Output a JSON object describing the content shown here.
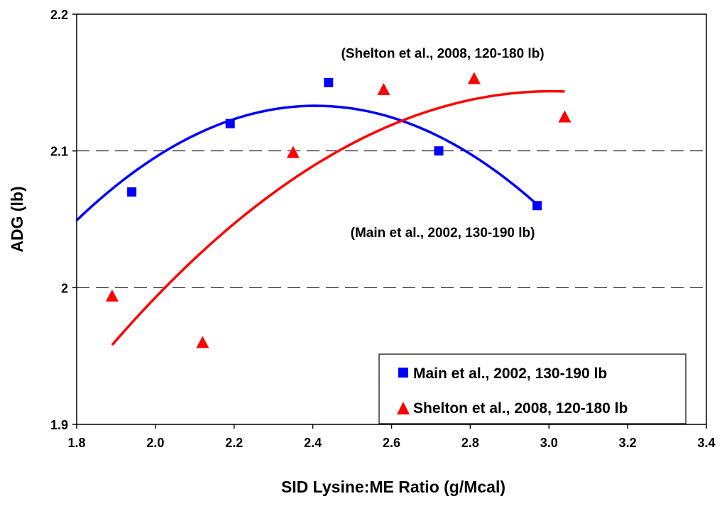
{
  "chart_data": {
    "type": "scatter",
    "title": "",
    "xlabel": "SID Lysine:ME Ratio (g/Mcal)",
    "ylabel": "ADG (lb)",
    "xlim": [
      1.8,
      3.4
    ],
    "ylim": [
      1.9,
      2.2
    ],
    "x_ticks": [
      "1.8",
      "2.0",
      "2.2",
      "2.4",
      "2.6",
      "2.8",
      "3.0",
      "3.2",
      "3.4"
    ],
    "y_ticks": [
      "1.9",
      "2",
      "2.1",
      "2.2"
    ],
    "grid": "dashed horizontal at 2 and 2.1",
    "legend_position": "bottom-right",
    "series": [
      {
        "name": "Main et al., 2002, 130-190 lb",
        "marker": "square",
        "color": "#0000FF",
        "x": [
          1.94,
          2.19,
          2.44,
          2.72,
          2.97
        ],
        "y": [
          2.07,
          2.12,
          2.15,
          2.1,
          2.06
        ],
        "fit_curve": {
          "x_range": [
            1.8,
            2.97
          ],
          "points": [
            [
              1.8,
              2.049
            ],
            [
              2.1,
              2.112
            ],
            [
              2.4,
              2.133
            ],
            [
              2.7,
              2.113
            ],
            [
              2.97,
              2.061
            ]
          ]
        }
      },
      {
        "name": "Shelton et al., 2008, 120-180 lb",
        "marker": "triangle",
        "color": "#FF0000",
        "x": [
          1.89,
          2.12,
          2.35,
          2.58,
          2.81,
          3.04
        ],
        "y": [
          1.994,
          1.96,
          2.099,
          2.145,
          2.153,
          2.125
        ],
        "fit_curve": {
          "x_range": [
            1.89,
            3.04
          ],
          "points": [
            [
              1.89,
              1.959
            ],
            [
              2.2,
              2.045
            ],
            [
              2.5,
              2.105
            ],
            [
              2.8,
              2.14
            ],
            [
              3.04,
              2.142
            ]
          ]
        }
      }
    ],
    "annotations": [
      {
        "text": "(Shelton et al., 2008, 120-180 lb)",
        "x": 2.73,
        "y": 2.168
      },
      {
        "text": "(Main et al., 2002, 130-190 lb)",
        "x": 2.73,
        "y": 2.037
      }
    ]
  }
}
